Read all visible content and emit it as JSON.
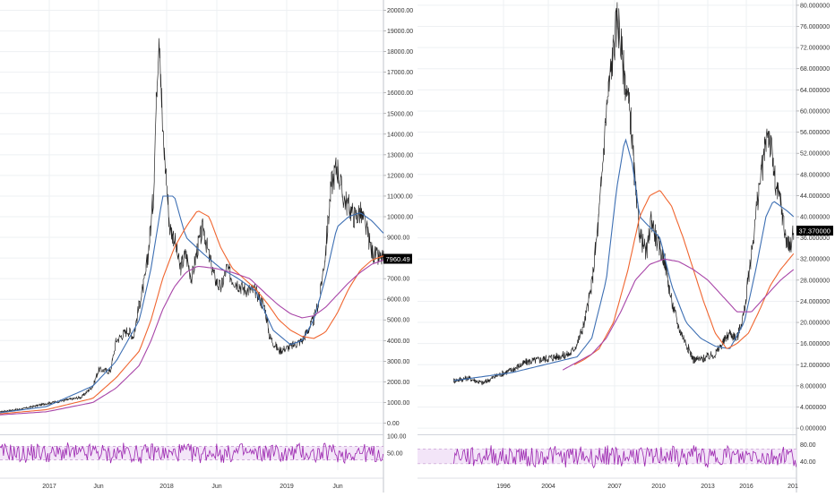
{
  "chart_data": [
    {
      "type": "line",
      "panel": "left",
      "title": "",
      "x_tick_labels": [
        "2017",
        "Jun",
        "2018",
        "Jun",
        "2019",
        "Jun"
      ],
      "x_range": [
        2016.6,
        2019.9
      ],
      "y_ticks": [
        "0.00",
        "1000.00",
        "2000.00",
        "3000.00",
        "4000.00",
        "5000.00",
        "6000.00",
        "7000.00",
        "8000.00",
        "9000.00",
        "10000.00",
        "11000.00",
        "12000.00",
        "13000.00",
        "14000.00",
        "15000.00",
        "16000.00",
        "17000.00",
        "18000.00",
        "19000.00",
        "20000.00"
      ],
      "ylim": [
        -500,
        20500
      ],
      "last_price_label": "7960.49",
      "last_price": 7960.49,
      "series": [
        {
          "role": "price",
          "color": "#222222",
          "x": [
            2016.6,
            2016.8,
            2017.0,
            2017.2,
            2017.3,
            2017.4,
            2017.45,
            2017.55,
            2017.6,
            2017.7,
            2017.75,
            2017.8,
            2017.85,
            2017.88,
            2017.92,
            2017.95,
            2017.97,
            2018.0,
            2018.03,
            2018.06,
            2018.1,
            2018.15,
            2018.2,
            2018.25,
            2018.3,
            2018.35,
            2018.4,
            2018.45,
            2018.5,
            2018.55,
            2018.6,
            2018.7,
            2018.8,
            2018.88,
            2018.92,
            2019.0,
            2019.1,
            2019.2,
            2019.3,
            2019.35,
            2019.4,
            2019.45,
            2019.5,
            2019.55,
            2019.6,
            2019.65,
            2019.7,
            2019.75,
            2019.8,
            2019.85,
            2019.9
          ],
          "y": [
            550,
            700,
            950,
            1150,
            1250,
            1800,
            2600,
            2500,
            4000,
            4500,
            4200,
            5800,
            7000,
            8500,
            11000,
            16500,
            19600,
            14000,
            12000,
            9500,
            9000,
            7500,
            8200,
            7000,
            8500,
            9500,
            8000,
            7000,
            6500,
            7500,
            7000,
            6500,
            6400,
            5600,
            4200,
            3500,
            3700,
            4000,
            5000,
            6000,
            8200,
            11500,
            12500,
            11000,
            10500,
            10000,
            10200,
            9500,
            8300,
            8000,
            7960
          ]
        },
        {
          "role": "moving average",
          "color": "#3d6fb3",
          "x": [
            2016.6,
            2017.0,
            2017.4,
            2017.6,
            2017.8,
            2017.9,
            2018.0,
            2018.1,
            2018.2,
            2018.35,
            2018.5,
            2018.65,
            2018.8,
            2018.95,
            2019.1,
            2019.2,
            2019.3,
            2019.4,
            2019.5,
            2019.6,
            2019.7,
            2019.8,
            2019.9
          ],
          "y": [
            500,
            800,
            1800,
            3000,
            5000,
            7500,
            11000,
            11000,
            9000,
            8200,
            7500,
            7000,
            6400,
            4500,
            3800,
            4000,
            5000,
            7000,
            9500,
            10000,
            10200,
            9800,
            9200
          ]
        },
        {
          "role": "moving average",
          "color": "#f0652f",
          "x": [
            2016.6,
            2017.0,
            2017.4,
            2017.6,
            2017.8,
            2017.9,
            2018.0,
            2018.1,
            2018.2,
            2018.3,
            2018.4,
            2018.5,
            2018.6,
            2018.7,
            2018.8,
            2018.9,
            2019.0,
            2019.1,
            2019.2,
            2019.3,
            2019.4,
            2019.5,
            2019.6,
            2019.7,
            2019.8,
            2019.9
          ],
          "y": [
            450,
            650,
            1200,
            2200,
            3500,
            5000,
            7000,
            8500,
            9500,
            10300,
            10000,
            8500,
            7500,
            7000,
            6500,
            5800,
            5000,
            4500,
            4200,
            4100,
            4400,
            5300,
            6500,
            7400,
            7900,
            8100
          ]
        },
        {
          "role": "moving average",
          "color": "#a845a8",
          "x": [
            2016.6,
            2017.0,
            2017.4,
            2017.6,
            2017.8,
            2017.9,
            2018.0,
            2018.1,
            2018.2,
            2018.3,
            2018.45,
            2018.6,
            2018.75,
            2018.9,
            2019.0,
            2019.1,
            2019.2,
            2019.3,
            2019.4,
            2019.5,
            2019.6,
            2019.7,
            2019.8,
            2019.9
          ],
          "y": [
            400,
            550,
            1000,
            1700,
            2800,
            4000,
            5500,
            6600,
            7300,
            7600,
            7500,
            7300,
            7000,
            6200,
            5700,
            5300,
            5100,
            5200,
            5600,
            6200,
            6800,
            7300,
            7700,
            7900
          ]
        }
      ],
      "rsi": {
        "y_ticks": [
          "100.00",
          "50.00"
        ],
        "ylim": [
          0,
          100
        ],
        "band": [
          30,
          70
        ],
        "series_color": "#9c27b0"
      }
    },
    {
      "type": "line",
      "panel": "right",
      "title": "",
      "x_tick_labels": [
        "1996",
        "2004",
        "2007",
        "2010",
        "2013",
        "2016",
        "201"
      ],
      "x_range": [
        1993.5,
        2019.6
      ],
      "y_ticks": [
        "0.000000",
        "4.000000",
        "8.000000",
        "12.000000",
        "16.000000",
        "20.000000",
        "24.000000",
        "28.000000",
        "32.000000",
        "36.000000",
        "40.000000",
        "44.000000",
        "48.000000",
        "52.000000",
        "56.000000",
        "60.000000",
        "64.000000",
        "68.000000",
        "72.000000",
        "76.000000",
        "80.000000"
      ],
      "ylim": [
        -1,
        81
      ],
      "last_price_label": "37.370000",
      "last_price": 37.37,
      "series": [
        {
          "role": "price",
          "color": "#222222",
          "x": [
            1996,
            1997,
            1998,
            1999,
            2000,
            2001,
            2002,
            2003,
            2004,
            2004.5,
            2005,
            2005.5,
            2006,
            2006.5,
            2007,
            2007.3,
            2007.6,
            2007.9,
            2008.2,
            2008.5,
            2008.8,
            2009,
            2009.3,
            2009.6,
            2010,
            2010.5,
            2011,
            2011.5,
            2012,
            2012.5,
            2013,
            2013.5,
            2014,
            2014.5,
            2015,
            2015.5,
            2016,
            2016.5,
            2017,
            2017.3,
            2017.6,
            2017.9,
            2018.2,
            2018.5,
            2018.8,
            2019.1,
            2019.4
          ],
          "y": [
            9,
            9.5,
            8.5,
            10,
            11,
            12.5,
            13,
            13.5,
            14,
            16,
            20,
            27,
            40,
            60,
            72,
            78,
            70,
            64,
            58,
            45,
            37,
            35,
            33,
            40,
            35,
            32,
            24,
            19,
            16,
            13,
            13,
            13.5,
            14,
            16,
            18,
            17,
            22,
            33,
            45,
            50,
            57,
            52,
            45,
            43,
            37,
            34,
            37
          ]
        },
        {
          "role": "moving average",
          "color": "#3d6fb3",
          "x": [
            1996,
            2000,
            2003,
            2004.5,
            2005.5,
            2006.5,
            2007.2,
            2007.8,
            2008.3,
            2008.8,
            2009.5,
            2010.2,
            2011,
            2012,
            2013,
            2014,
            2015,
            2016,
            2016.8,
            2017.5,
            2018,
            2018.5,
            2019,
            2019.4
          ],
          "y": [
            9,
            10.5,
            12.5,
            13.5,
            17,
            28,
            45,
            55,
            50,
            40,
            38,
            36,
            27,
            20,
            17,
            15.5,
            15,
            20,
            30,
            40,
            43,
            42,
            41,
            40
          ]
        },
        {
          "role": "moving average",
          "color": "#f0652f",
          "x": [
            2004.3,
            2005,
            2006,
            2007,
            2008,
            2008.8,
            2009.5,
            2010.2,
            2011,
            2011.8,
            2012.5,
            2013.2,
            2014,
            2014.8,
            2015.5,
            2016.3,
            2017,
            2017.8,
            2018.5,
            2019.4
          ],
          "y": [
            12,
            13,
            15,
            20,
            30,
            40,
            44,
            45,
            42,
            36,
            30,
            24,
            18,
            15,
            16,
            18,
            22,
            27,
            30,
            33
          ]
        },
        {
          "role": "moving average",
          "color": "#a845a8",
          "x": [
            2003.5,
            2004.5,
            2005.5,
            2006.5,
            2007.5,
            2008.5,
            2009.5,
            2010.5,
            2011.5,
            2012.5,
            2013.5,
            2014.5,
            2015.5,
            2016.5,
            2017.5,
            2018.5,
            2019.4
          ],
          "y": [
            11,
            12.5,
            14,
            17,
            22,
            28,
            31,
            32,
            31.5,
            30,
            28,
            25,
            22,
            22,
            25,
            28,
            30
          ]
        }
      ],
      "rsi": {
        "y_ticks": [
          "80.00",
          "40.00"
        ],
        "ylim": [
          20,
          100
        ],
        "band": [
          35,
          70
        ],
        "series_color": "#9c27b0"
      }
    }
  ]
}
